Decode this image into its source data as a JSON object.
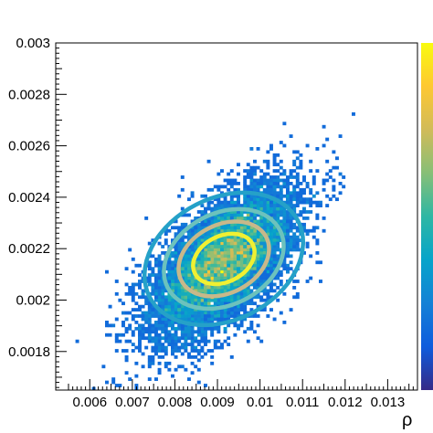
{
  "chart_data": {
    "type": "heatmap",
    "title": "",
    "xlabel": "ρ",
    "ylabel": "",
    "xlim": [
      0.0052,
      0.0137
    ],
    "ylim": [
      0.00165,
      0.003
    ],
    "x_ticks": [
      0.006,
      0.007,
      0.008,
      0.009,
      0.01,
      0.011,
      0.012,
      0.013
    ],
    "x_tick_labels": [
      "0.006",
      "0.007",
      "0.008",
      "0.009",
      "0.01",
      "0.011",
      "0.012",
      "0.013"
    ],
    "y_ticks": [
      0.0018,
      0.002,
      0.0022,
      0.0024,
      0.0026,
      0.0028,
      0.003
    ],
    "y_tick_labels": [
      "0.0018",
      "0.002",
      "0.0022",
      "0.0024",
      "0.0026",
      "0.0028",
      "0.003"
    ],
    "grid": false,
    "colorbar": {
      "position": "right",
      "colors": [
        "#352a87",
        "#0f5cdd",
        "#1481d6",
        "#06a4ca",
        "#2eb7a4",
        "#87bf77",
        "#d1bb59",
        "#fec832",
        "#f9fb0e"
      ]
    },
    "density": {
      "center": [
        0.00915,
        0.00215
      ],
      "sigma_x": 0.00085,
      "sigma_y": 0.000145,
      "correlation": 0.62,
      "n_points": 9000
    },
    "contours": [
      {
        "color": "#25a1c8",
        "rx": 0.00196,
        "ry": 0.000237
      },
      {
        "color": "#6cc2bd",
        "rx": 0.00148,
        "ry": 0.000178
      },
      {
        "color": "#c8b88a",
        "rx": 0.00112,
        "ry": 0.000133
      },
      {
        "color": "#f0f032",
        "rx": 0.00076,
        "ry": 8.9e-05
      }
    ],
    "contour_center": [
      0.00915,
      0.00216
    ],
    "contour_angle_deg": -27
  }
}
